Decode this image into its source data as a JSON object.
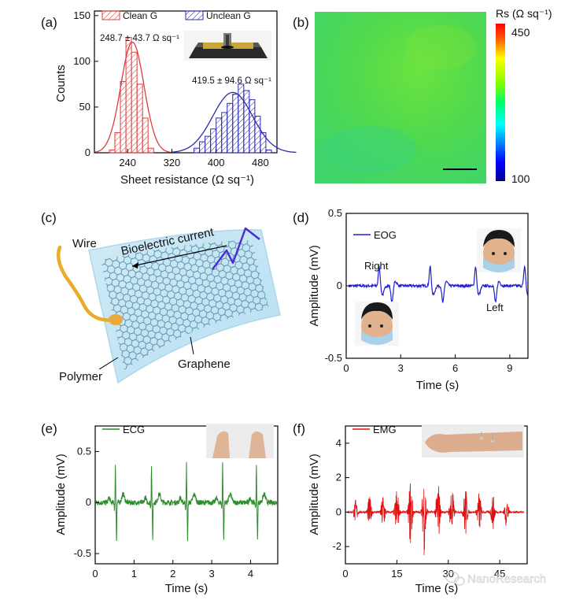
{
  "figure": {
    "panel_labels": [
      "(a)",
      "(b)",
      "(c)",
      "(d)",
      "(e)",
      "(f)"
    ],
    "watermark": "NanoResearch",
    "watermark_icon": "wechat-icon"
  },
  "panel_a": {
    "chart_data": {
      "type": "bar",
      "xlabel": "Sheet resistance (Ω sq⁻¹)",
      "ylabel": "Counts",
      "xlim": [
        180,
        510
      ],
      "ylim": [
        0,
        155
      ],
      "xticks": [
        "240",
        "320",
        "400",
        "480"
      ],
      "yticks": [
        "0",
        "50",
        "100",
        "150"
      ],
      "legend_position": "top",
      "series": [
        {
          "name": "Clean G",
          "color": "#e03c3c",
          "annotation": "248.7 ± 43.7 Ω sq⁻¹",
          "bin_centers": [
            212,
            222,
            232,
            242,
            252,
            262,
            272,
            282
          ],
          "values": [
            3,
            22,
            78,
            126,
            110,
            75,
            38,
            5
          ],
          "fit": {
            "mean": 248.7,
            "peak": 121,
            "sigma": 21
          }
        },
        {
          "name": "Unclean G",
          "color": "#2b2bb0",
          "annotation": "419.5 ± 94.6 Ω sq⁻¹",
          "bin_centers": [
            365,
            375,
            385,
            395,
            405,
            415,
            425,
            435,
            445,
            455,
            465,
            475,
            485,
            495
          ],
          "values": [
            5,
            12,
            18,
            26,
            38,
            44,
            54,
            64,
            75,
            68,
            58,
            40,
            22,
            3
          ],
          "fit": {
            "mean": 430,
            "peak": 66,
            "sigma": 36
          }
        }
      ]
    }
  },
  "panel_b": {
    "colorbar_label": "Rs (Ω sq⁻¹)",
    "colorbar_max": "450",
    "colorbar_min": "100"
  },
  "panel_c": {
    "labels": {
      "wire": "Wire",
      "current": "Bioelectric current",
      "polymer": "Polymer",
      "graphene": "Graphene"
    }
  },
  "panel_d": {
    "chart_data": {
      "type": "line",
      "xlabel": "Time (s)",
      "ylabel": "Amplitude (mV)",
      "xlim": [
        0,
        10
      ],
      "ylim": [
        -0.5,
        0.5
      ],
      "xticks": [
        "0",
        "3",
        "6",
        "9"
      ],
      "yticks": [
        "-0.5",
        "0",
        "0.5"
      ],
      "legend_position": "top-left",
      "series": [
        {
          "name": "EOG",
          "color": "#1f1fd6",
          "baseline": 0,
          "events_up_s": [
            1.8,
            4.6,
            7.1,
            9.8
          ],
          "events_down_s": [
            2.5,
            5.3,
            8.2
          ],
          "peak_mV": 0.14
        }
      ],
      "annotations": [
        "Right",
        "Left"
      ]
    }
  },
  "panel_e": {
    "chart_data": {
      "type": "line",
      "xlabel": "Time (s)",
      "ylabel": "Amplitude (mV)",
      "xlim": [
        0,
        4.7
      ],
      "ylim": [
        -0.6,
        0.75
      ],
      "xticks": [
        "0",
        "1",
        "2",
        "3",
        "4"
      ],
      "yticks": [
        "-0.5",
        "0",
        "0.5"
      ],
      "legend_position": "top-left",
      "series": [
        {
          "name": "ECG",
          "color": "#2e8b2e",
          "beat_times_s": [
            0.52,
            1.45,
            2.35,
            3.28,
            4.15
          ],
          "r_peak_mV": 0.38,
          "s_trough_mV": -0.37
        }
      ]
    }
  },
  "panel_f": {
    "chart_data": {
      "type": "line",
      "xlabel": "Time (s)",
      "ylabel": "Amplitude (mV)",
      "xlim": [
        0,
        53
      ],
      "ylim": [
        -3,
        5
      ],
      "xticks": [
        "0",
        "15",
        "30",
        "45"
      ],
      "yticks": [
        "-2",
        "0",
        "2",
        "4"
      ],
      "legend_position": "top-left",
      "series": [
        {
          "name": "EMG",
          "color": "#e01010",
          "burst_times_s": [
            3,
            7,
            11,
            15,
            19,
            23,
            27,
            31,
            35,
            39,
            43,
            47
          ],
          "burst_peaks_mV": [
            0.7,
            0.9,
            1.2,
            1.5,
            2.1,
            2.5,
            2.0,
            1.7,
            1.5,
            1.3,
            1.0,
            0.9
          ]
        }
      ]
    }
  }
}
